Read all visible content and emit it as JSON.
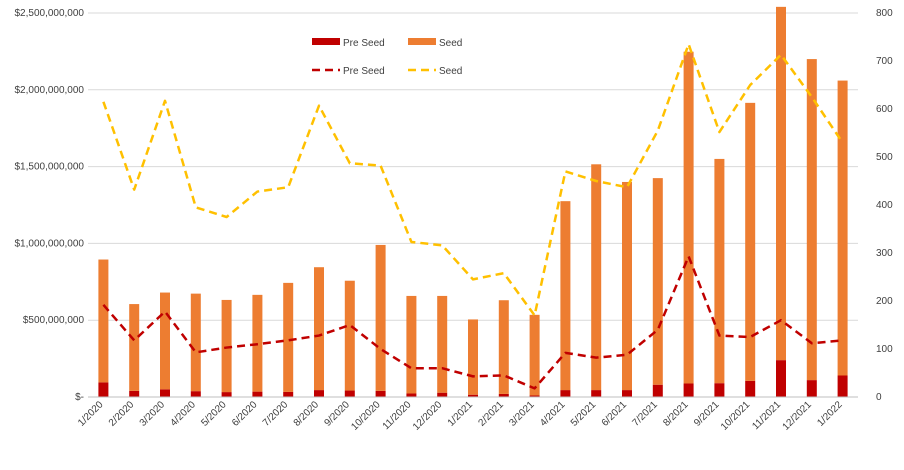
{
  "chart_data": {
    "type": "bar+line",
    "title": "",
    "categories": [
      "1/2020",
      "2/2020",
      "3/2020",
      "4/2020",
      "5/2020",
      "6/2020",
      "7/2020",
      "8/2020",
      "9/2020",
      "10/2020",
      "11/2020",
      "12/2020",
      "1/2021",
      "2/2021",
      "3/2021",
      "4/2021",
      "5/2021",
      "6/2021",
      "7/2021",
      "8/2021",
      "9/2021",
      "10/2021",
      "11/2021",
      "12/2021",
      "1/2022"
    ],
    "bar_series": [
      {
        "name": "Pre Seed",
        "color": "#C00000",
        "values": [
          95000000,
          40000000,
          50000000,
          38000000,
          32000000,
          35000000,
          33000000,
          45000000,
          42000000,
          40000000,
          23000000,
          28000000,
          15000000,
          20000000,
          10000000,
          45000000,
          45000000,
          45000000,
          80000000,
          88000000,
          90000000,
          105000000,
          240000000,
          110000000,
          140000000
        ]
      },
      {
        "name": "Seed",
        "color": "#ED7D31",
        "values": [
          800000000,
          565000000,
          630000000,
          635000000,
          600000000,
          630000000,
          710000000,
          800000000,
          715000000,
          950000000,
          635000000,
          630000000,
          490000000,
          610000000,
          525000000,
          1230000000,
          1470000000,
          1355000000,
          1345000000,
          2160000000,
          1460000000,
          1810000000,
          2300000000,
          2090000000,
          1920000000
        ]
      }
    ],
    "line_series": [
      {
        "name": "Pre Seed",
        "color": "#C00000",
        "dash": "dashed",
        "values": [
          192,
          118,
          178,
          93,
          103,
          110,
          118,
          128,
          150,
          100,
          60,
          60,
          43,
          45,
          18,
          92,
          82,
          88,
          140,
          293,
          128,
          125,
          160,
          112,
          118
        ]
      },
      {
        "name": "Seed",
        "color": "#FFC000",
        "dash": "dashed",
        "values": [
          615,
          432,
          617,
          395,
          375,
          428,
          437,
          607,
          487,
          482,
          323,
          316,
          245,
          258,
          170,
          470,
          450,
          437,
          555,
          735,
          552,
          650,
          713,
          625,
          530
        ]
      }
    ],
    "y_left": {
      "min": 0,
      "max": 2500000000,
      "ticks": [
        "$-",
        "$500,000,000",
        "$1,000,000,000",
        "$1,500,000,000",
        "$2,000,000,000",
        "$2,500,000,000"
      ]
    },
    "y_right": {
      "min": 0,
      "max": 800,
      "ticks": [
        "0",
        "100",
        "200",
        "300",
        "400",
        "500",
        "600",
        "700",
        "800"
      ]
    },
    "legend": {
      "placement": "top-left",
      "items": [
        "Pre Seed",
        "Seed",
        "Pre Seed",
        "Seed"
      ]
    },
    "grid": "horizontal"
  }
}
